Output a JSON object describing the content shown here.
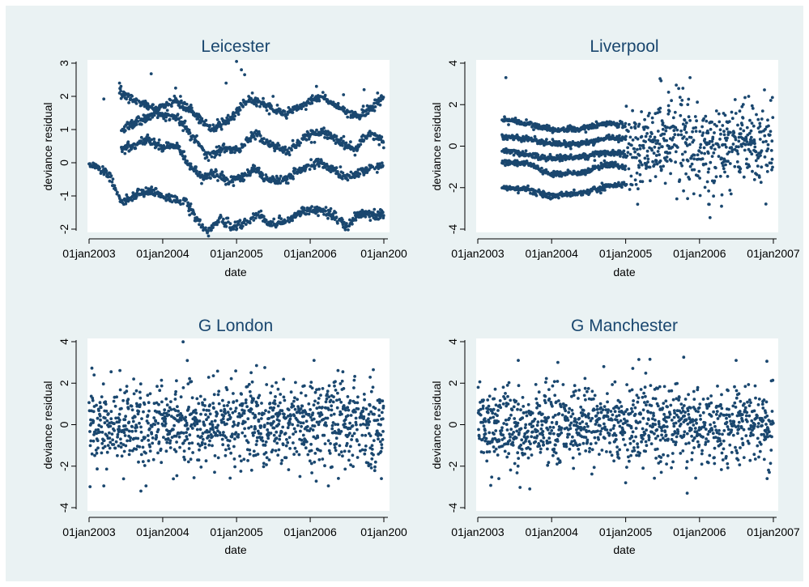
{
  "chart_data": [
    {
      "type": "scatter",
      "title": "Leicester",
      "xlabel": "date",
      "ylabel": "deviance residual",
      "x_ticks": [
        "01jan2003",
        "01jan2004",
        "01jan2005",
        "01jan2006",
        "01jan200"
      ],
      "y_ticks": [
        "-2",
        "-1",
        "0",
        "1",
        "2",
        "3"
      ],
      "ylim": [
        -2.3,
        3.15
      ],
      "x_range": [
        "2003-01-01",
        "2007-01-01"
      ],
      "data_period": [
        "2003-01-01",
        "2006-12-31"
      ],
      "pattern": "banded",
      "bands": [
        {
          "name": "",
          "keys": [
            [
              "2003-01-01",
              -0.02
            ],
            [
              "2003-04-10",
              -0.38
            ],
            [
              "2003-06-10",
              -1.2
            ],
            [
              "2003-08-20",
              -1.0
            ],
            [
              "2003-11-01",
              -0.85
            ],
            [
              "2004-02-01",
              -1.08
            ],
            [
              "2004-04-15",
              -1.15
            ],
            [
              "2004-06-15",
              -1.65
            ],
            [
              "2004-08-10",
              -2.1
            ],
            [
              "2004-10-15",
              -1.7
            ],
            [
              "2004-12-15",
              -1.9
            ],
            [
              "2005-02-15",
              -1.85
            ],
            [
              "2005-04-15",
              -1.5
            ],
            [
              "2005-06-15",
              -1.85
            ],
            [
              "2005-09-15",
              -1.75
            ],
            [
              "2005-12-01",
              -1.4
            ],
            [
              "2006-02-15",
              -1.45
            ],
            [
              "2006-05-01",
              -1.6
            ],
            [
              "2006-07-01",
              -1.9
            ],
            [
              "2006-09-01",
              -1.55
            ],
            [
              "2006-12-31",
              -1.55
            ]
          ]
        },
        {
          "name": "",
          "keys": [
            [
              "2003-06-10",
              0.4
            ],
            [
              "2003-08-20",
              0.55
            ],
            [
              "2003-10-15",
              0.72
            ],
            [
              "2004-01-01",
              0.45
            ],
            [
              "2004-03-15",
              0.5
            ],
            [
              "2004-05-15",
              -0.1
            ],
            [
              "2004-07-15",
              -0.45
            ],
            [
              "2004-09-15",
              -0.3
            ],
            [
              "2004-11-15",
              -0.55
            ],
            [
              "2005-01-15",
              -0.5
            ],
            [
              "2005-04-01",
              -0.2
            ],
            [
              "2005-06-01",
              -0.55
            ],
            [
              "2005-09-01",
              -0.5
            ],
            [
              "2005-12-01",
              -0.15
            ],
            [
              "2006-02-01",
              0.05
            ],
            [
              "2006-04-15",
              -0.2
            ],
            [
              "2006-07-01",
              -0.45
            ],
            [
              "2006-09-15",
              -0.25
            ],
            [
              "2006-12-31",
              -0.1
            ]
          ]
        },
        {
          "name": "",
          "keys": [
            [
              "2003-06-10",
              1.0
            ],
            [
              "2003-09-01",
              1.25
            ],
            [
              "2003-12-01",
              1.5
            ],
            [
              "2004-03-15",
              1.35
            ],
            [
              "2004-06-01",
              0.75
            ],
            [
              "2004-08-15",
              0.2
            ],
            [
              "2004-11-01",
              0.45
            ],
            [
              "2005-01-15",
              0.35
            ],
            [
              "2005-04-01",
              0.9
            ],
            [
              "2005-06-15",
              0.55
            ],
            [
              "2005-09-15",
              0.35
            ],
            [
              "2005-12-15",
              0.8
            ],
            [
              "2006-03-01",
              0.95
            ],
            [
              "2006-06-01",
              0.6
            ],
            [
              "2006-08-15",
              0.4
            ],
            [
              "2006-10-15",
              0.9
            ],
            [
              "2006-12-31",
              0.65
            ]
          ]
        },
        {
          "name": "",
          "keys": [
            [
              "2003-06-01",
              2.1
            ],
            [
              "2003-09-01",
              1.85
            ],
            [
              "2003-12-01",
              1.6
            ],
            [
              "2004-03-01",
              1.9
            ],
            [
              "2004-06-01",
              1.5
            ],
            [
              "2004-09-01",
              1.0
            ],
            [
              "2004-12-01",
              1.35
            ],
            [
              "2005-03-01",
              1.9
            ],
            [
              "2005-06-01",
              1.7
            ],
            [
              "2005-09-01",
              1.5
            ],
            [
              "2005-12-01",
              1.75
            ],
            [
              "2006-03-01",
              2.0
            ],
            [
              "2006-06-01",
              1.6
            ],
            [
              "2006-09-01",
              1.4
            ],
            [
              "2006-12-31",
              1.95
            ]
          ]
        }
      ],
      "outliers": [
        [
          "2003-03-15",
          1.92
        ],
        [
          "2003-06-01",
          2.4
        ],
        [
          "2003-06-08",
          2.3
        ],
        [
          "2003-11-05",
          2.68
        ],
        [
          "2004-03-05",
          2.25
        ],
        [
          "2004-11-10",
          2.4
        ],
        [
          "2005-01-01",
          3.05
        ],
        [
          "2005-01-25",
          2.8
        ],
        [
          "2005-02-10",
          2.65
        ],
        [
          "2005-03-20",
          2.1
        ],
        [
          "2005-07-01",
          2.0
        ],
        [
          "2006-02-01",
          2.3
        ],
        [
          "2006-06-15",
          2.05
        ],
        [
          "2006-09-25",
          2.2
        ],
        [
          "2006-12-01",
          2.1
        ]
      ]
    },
    {
      "type": "scatter",
      "title": "Liverpool",
      "xlabel": "date",
      "ylabel": "deviance residual",
      "x_ticks": [
        "01jan2003",
        "01jan2004",
        "01jan2005",
        "01jan2006",
        "01jan2007"
      ],
      "y_ticks": [
        "-4",
        "-2",
        "0",
        "2",
        "4"
      ],
      "ylim": [
        -4.4,
        4.4
      ],
      "x_range": [
        "2003-01-01",
        "2007-01-01"
      ],
      "data_period": [
        "2003-05-01",
        "2006-12-31"
      ],
      "pattern": "banded",
      "bands": [
        {
          "name": "",
          "keys": [
            [
              "2003-05-01",
              -2.0
            ],
            [
              "2003-09-01",
              -2.1
            ],
            [
              "2004-01-01",
              -2.4
            ],
            [
              "2004-06-01",
              -2.25
            ],
            [
              "2004-10-01",
              -1.95
            ],
            [
              "2004-12-31",
              -1.85
            ]
          ]
        },
        {
          "name": "",
          "keys": [
            [
              "2003-05-01",
              -0.8
            ],
            [
              "2003-09-01",
              -0.8
            ],
            [
              "2004-01-01",
              -1.35
            ],
            [
              "2004-06-01",
              -1.3
            ],
            [
              "2004-10-01",
              -0.9
            ],
            [
              "2004-12-31",
              -1.0
            ]
          ]
        },
        {
          "name": "",
          "keys": [
            [
              "2003-05-01",
              -0.2
            ],
            [
              "2003-09-01",
              -0.4
            ],
            [
              "2004-01-01",
              -0.6
            ],
            [
              "2004-06-01",
              -0.5
            ],
            [
              "2004-10-01",
              -0.3
            ],
            [
              "2004-12-31",
              -0.4
            ]
          ]
        },
        {
          "name": "",
          "keys": [
            [
              "2003-05-01",
              0.45
            ],
            [
              "2003-09-01",
              0.35
            ],
            [
              "2004-01-01",
              0.1
            ],
            [
              "2004-06-01",
              0.1
            ],
            [
              "2004-10-01",
              0.4
            ],
            [
              "2004-12-31",
              0.3
            ]
          ]
        },
        {
          "name": "",
          "keys": [
            [
              "2003-05-01",
              1.3
            ],
            [
              "2003-09-01",
              1.1
            ],
            [
              "2004-01-01",
              0.8
            ],
            [
              "2004-06-01",
              0.85
            ],
            [
              "2004-10-01",
              1.1
            ],
            [
              "2004-12-31",
              1.0
            ]
          ]
        }
      ],
      "noise_period": [
        "2005-01-01",
        "2006-12-31"
      ],
      "noise_spread": 1.05,
      "outliers": [
        [
          "2003-05-20",
          3.3
        ],
        [
          "2005-06-20",
          3.25
        ],
        [
          "2005-06-25",
          3.15
        ],
        [
          "2005-11-15",
          3.3
        ],
        [
          "2005-03-01",
          -2.8
        ],
        [
          "2006-02-15",
          -2.8
        ],
        [
          "2005-08-01",
          2.6
        ],
        [
          "2006-09-01",
          2.4
        ]
      ]
    },
    {
      "type": "scatter",
      "title": "G London",
      "xlabel": "date",
      "ylabel": "deviance residual",
      "x_ticks": [
        "01jan2003",
        "01jan2004",
        "01jan2005",
        "01jan2006",
        "01jan200"
      ],
      "y_ticks": [
        "-4",
        "-2",
        "0",
        "2",
        "4"
      ],
      "ylim": [
        -4.4,
        4.4
      ],
      "x_range": [
        "2003-01-01",
        "2007-01-01"
      ],
      "data_period": [
        "2003-01-01",
        "2006-12-31"
      ],
      "pattern": "noise",
      "noise_spread": 1.05,
      "outliers": [
        [
          "2003-03-15",
          -2.95
        ],
        [
          "2003-09-15",
          -3.2
        ],
        [
          "2003-10-10",
          -2.95
        ],
        [
          "2006-01-20",
          3.1
        ],
        [
          "2005-04-10",
          2.85
        ],
        [
          "2006-11-10",
          2.65
        ],
        [
          "2006-12-20",
          -2.6
        ],
        [
          "2003-04-20",
          2.55
        ],
        [
          "2006-04-01",
          -2.95
        ]
      ]
    },
    {
      "type": "scatter",
      "title": "G Manchester",
      "xlabel": "date",
      "ylabel": "deviance residual",
      "x_ticks": [
        "01jan2003",
        "01jan2004",
        "01jan2005",
        "01jan2006",
        "01jan2007"
      ],
      "y_ticks": [
        "-4",
        "-2",
        "0",
        "2",
        "4"
      ],
      "ylim": [
        -4.4,
        4.4
      ],
      "x_range": [
        "2003-01-01",
        "2007-01-01"
      ],
      "data_period": [
        "2003-01-01",
        "2006-12-31"
      ],
      "pattern": "noise",
      "noise_spread": 0.95,
      "outliers": [
        [
          "2003-09-15",
          -3.1
        ],
        [
          "2005-10-15",
          3.25
        ],
        [
          "2005-11-01",
          -3.3
        ],
        [
          "2003-07-20",
          3.1
        ],
        [
          "2004-02-01",
          3.0
        ],
        [
          "2005-05-01",
          3.15
        ],
        [
          "2006-07-01",
          3.1
        ],
        [
          "2004-09-15",
          2.8
        ],
        [
          "2003-04-15",
          -2.6
        ],
        [
          "2006-12-01",
          -2.6
        ]
      ]
    }
  ]
}
